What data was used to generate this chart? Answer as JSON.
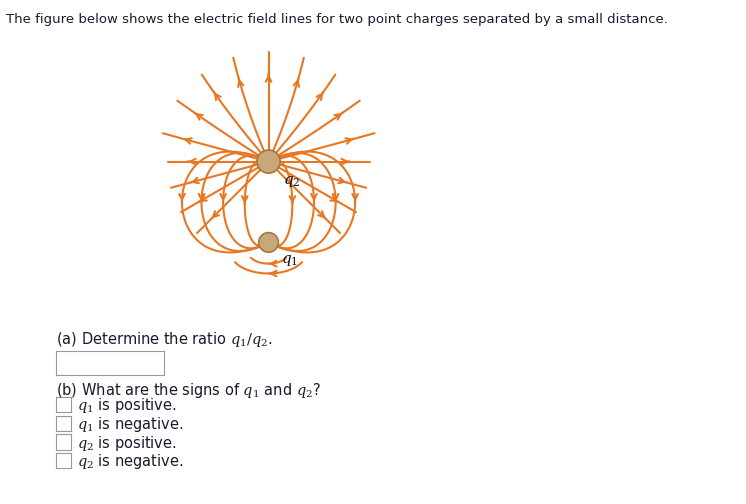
{
  "title_text": "The figure below shows the electric field lines for two point charges separated by a small distance.",
  "field_line_color": "#E87722",
  "sphere_color": "#C8A87A",
  "sphere_edge_color": "#A07840",
  "q2_label": "$q_2$",
  "q1_label": "$q_1$",
  "part_a_label": "(a) Determine the ratio $q_1/q_2$.",
  "part_b_label": "(b) What are the signs of $q_1$ and $q_2$?",
  "options": [
    "$q_1$ is positive.",
    "$q_1$ is negative.",
    "$q_2$ is positive.",
    "$q_2$ is negative."
  ],
  "background_color": "#FFFFFF",
  "text_color": "#1a1a2e",
  "title_fontsize": 9.5
}
